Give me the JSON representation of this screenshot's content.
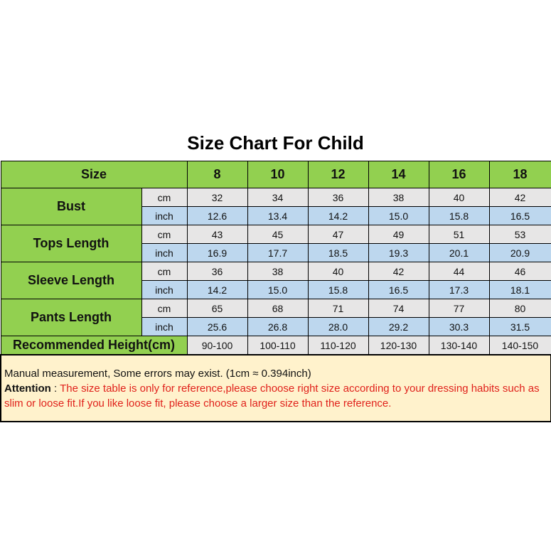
{
  "title": "Size Chart For Child",
  "header": {
    "label": "Size",
    "sizes": [
      "8",
      "10",
      "12",
      "14",
      "16",
      "18"
    ]
  },
  "units": {
    "cm": "cm",
    "inch": "inch"
  },
  "rows": [
    {
      "label": "Bust",
      "cm": [
        "32",
        "34",
        "36",
        "38",
        "40",
        "42"
      ],
      "inch": [
        "12.6",
        "13.4",
        "14.2",
        "15.0",
        "15.8",
        "16.5"
      ]
    },
    {
      "label": "Tops Length",
      "cm": [
        "43",
        "45",
        "47",
        "49",
        "51",
        "53"
      ],
      "inch": [
        "16.9",
        "17.7",
        "18.5",
        "19.3",
        "20.1",
        "20.9"
      ]
    },
    {
      "label": "Sleeve Length",
      "cm": [
        "36",
        "38",
        "40",
        "42",
        "44",
        "46"
      ],
      "inch": [
        "14.2",
        "15.0",
        "15.8",
        "16.5",
        "17.3",
        "18.1"
      ]
    },
    {
      "label": "Pants Length",
      "cm": [
        "65",
        "68",
        "71",
        "74",
        "77",
        "80"
      ],
      "inch": [
        "25.6",
        "26.8",
        "28.0",
        "29.2",
        "30.3",
        "31.5"
      ]
    }
  ],
  "recommended": {
    "label": "Recommended Height(cm)",
    "values": [
      "90-100",
      "100-110",
      "110-120",
      "120-130",
      "130-140",
      "140-150"
    ]
  },
  "note": {
    "line1": "Manual measurement, Some errors may exist.  (1cm ≈ 0.394inch)",
    "attention_label": "Attention",
    "attention_sep": " : ",
    "attention_text": "The size table is only for reference,please choose right size according to your dressing habits such as slim or loose fit.If you like loose fit, please choose a larger size than the reference."
  },
  "colors": {
    "green": "#92d050",
    "gray": "#e7e6e6",
    "blue": "#bdd7ee",
    "note_bg": "#fff2cc",
    "red": "#e0211b"
  }
}
